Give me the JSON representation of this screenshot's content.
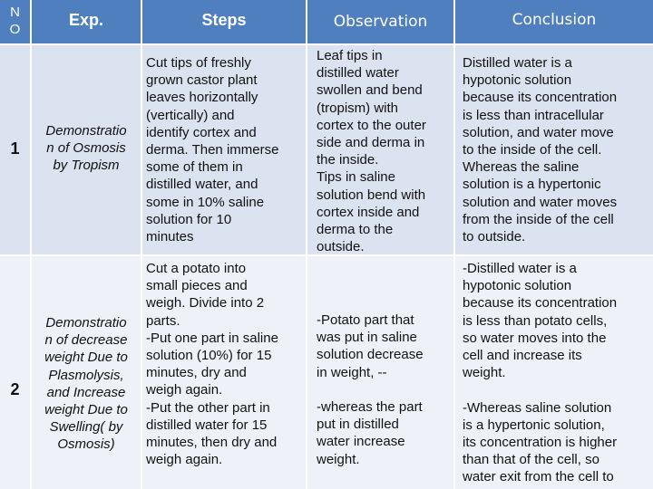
{
  "table": {
    "headers": {
      "no": "N\nO",
      "exp": "Exp.",
      "steps": "Steps",
      "observation": "Observation",
      "conclusion": "Conclusion"
    },
    "rows": [
      {
        "no": "1",
        "exp": "Demonstratio\nn of Osmosis\nby Tropism",
        "steps": "Cut tips of freshly\ngrown castor plant\nleaves horizontally\n(vertically) and\nidentify cortex and\nderma. Then immerse\nsome of them in\ndistilled water, and\nsome in 10% saline\nsolution for 10\n minutes",
        "observation": "Leaf tips in\ndistilled water\nswollen and bend\n(tropism) with\ncortex to the outer\nside and derma in\nthe inside.\nTips in saline\nsolution  bend with\ncortex inside and\nderma to the\noutside.",
        "conclusion": "Distilled water is a\nhypotonic solution\nbecause its concentration\nis less than intracellular\nsolution, and water move\nto the inside of the cell.\nWhereas the saline\nsolution is a hypertonic\nsolution and water moves\nfrom the inside of the cell\nto outside."
      },
      {
        "no": "2",
        "exp": "Demonstratio\nn of decrease\nweight  Due to\nPlasmolysis,\nand Increase\nweight Due to\nSwelling( by\nOsmosis)",
        "steps": "Cut a potato into\nsmall pieces and\nweigh. Divide into 2\nparts.\n-Put one part in saline\nsolution (10%) for 15\nminutes, dry and\nweigh again.\n-Put the other part in\ndistilled water for 15\nminutes, then dry and\nweigh again.",
        "observation": "-Potato part that\nwas put in saline\nsolution decrease\nin weight, --\n\n-whereas the part\nput in distilled\nwater increase\nweight.",
        "conclusion": "-Distilled water is a\nhypotonic solution\nbecause its concentration\nis less than potato cells,\nso  water moves into the\ncell and increase its\nweight.\n\n-Whereas saline solution\nis a hypertonic solution,\nits concentration is higher\nthan that of the cell, so\nwater exit from the cell to"
      }
    ]
  }
}
